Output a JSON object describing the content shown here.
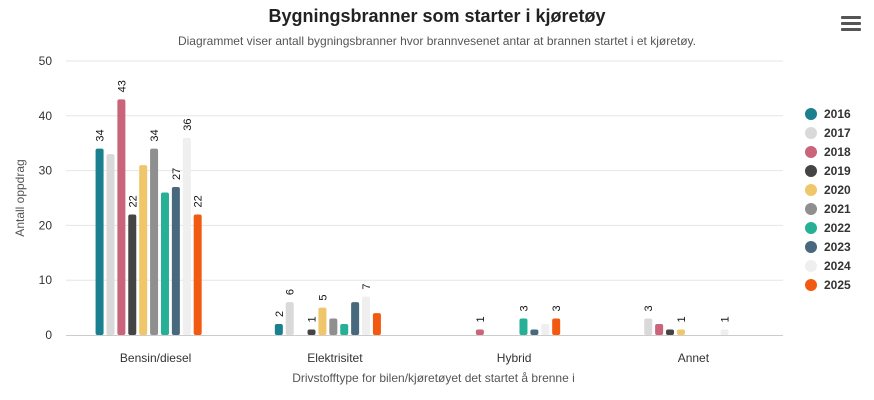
{
  "page": {
    "menu_icon": "hamburger-menu-icon"
  },
  "chart_data": {
    "type": "bar",
    "title": "Bygningsbranner som starter i kjøretøy",
    "subtitle": "Diagrammet viser antall bygningsbranner hvor brannvesenet antar at brannen startet i et kjøretøy.",
    "xlabel": "Drivstofftype for bilen/kjøretøyet det startet å brenne i",
    "ylabel": "Antall oppdrag",
    "ylim": [
      0,
      50
    ],
    "yticks": [
      0,
      10,
      20,
      30,
      40,
      50
    ],
    "grid": true,
    "legend_position": "right",
    "categories": [
      "Bensin/diesel",
      "Elektrisitet",
      "Hybrid",
      "Annet"
    ],
    "series": [
      {
        "name": "2016",
        "color": "#1a7f8e",
        "values": [
          34,
          2,
          0,
          0
        ],
        "labeled": [
          true,
          true,
          false,
          false
        ]
      },
      {
        "name": "2017",
        "color": "#d9d9d9",
        "values": [
          33,
          6,
          0,
          3
        ],
        "labeled": [
          false,
          true,
          false,
          true
        ]
      },
      {
        "name": "2018",
        "color": "#c9647a",
        "values": [
          43,
          0,
          1,
          2
        ],
        "labeled": [
          true,
          false,
          true,
          false
        ]
      },
      {
        "name": "2019",
        "color": "#444444",
        "values": [
          22,
          1,
          0,
          1
        ],
        "labeled": [
          true,
          true,
          false,
          false
        ]
      },
      {
        "name": "2020",
        "color": "#f0c66b",
        "values": [
          31,
          5,
          0,
          1
        ],
        "labeled": [
          false,
          true,
          false,
          true
        ]
      },
      {
        "name": "2021",
        "color": "#8f8f8f",
        "values": [
          34,
          3,
          0,
          0
        ],
        "labeled": [
          true,
          false,
          false,
          false
        ]
      },
      {
        "name": "2022",
        "color": "#26b096",
        "values": [
          26,
          2,
          3,
          0
        ],
        "labeled": [
          false,
          false,
          true,
          false
        ]
      },
      {
        "name": "2023",
        "color": "#47687d",
        "values": [
          27,
          6,
          1,
          0
        ],
        "labeled": [
          true,
          false,
          false,
          false
        ]
      },
      {
        "name": "2024",
        "color": "#efefef",
        "values": [
          36,
          7,
          2,
          1
        ],
        "labeled": [
          true,
          true,
          false,
          true
        ]
      },
      {
        "name": "2025",
        "color": "#f25a12",
        "values": [
          22,
          4,
          3,
          0
        ],
        "labeled": [
          true,
          false,
          true,
          false
        ]
      }
    ]
  }
}
